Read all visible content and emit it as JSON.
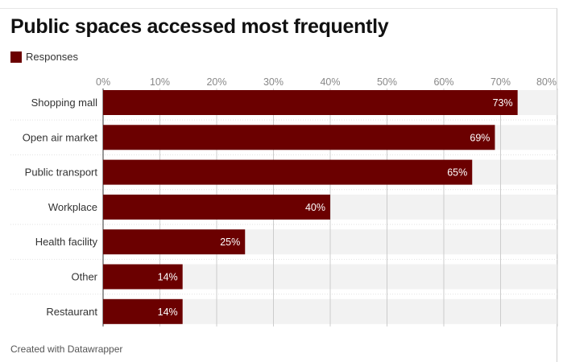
{
  "title": "Public spaces accessed most frequently",
  "legend": {
    "label": "Responses",
    "color": "#6b0000"
  },
  "footer": "Created with Datawrapper",
  "colors": {
    "bar": "#6b0000",
    "track": "#f2f2f2",
    "grid": "#cccccc"
  },
  "chart_data": {
    "type": "bar",
    "orientation": "horizontal",
    "title": "Public spaces accessed most frequently",
    "categories": [
      "Shopping mall",
      "Open air market",
      "Public transport",
      "Workplace",
      "Health facility",
      "Other",
      "Restaurant"
    ],
    "series": [
      {
        "name": "Responses",
        "values": [
          73,
          69,
          65,
          40,
          25,
          14,
          14
        ]
      }
    ],
    "value_labels": [
      "73%",
      "69%",
      "65%",
      "40%",
      "25%",
      "14%",
      "14%"
    ],
    "xlim": [
      0,
      80
    ],
    "x_ticks": [
      0,
      10,
      20,
      30,
      40,
      50,
      60,
      70,
      80
    ],
    "x_tick_labels": [
      "0%",
      "10%",
      "20%",
      "30%",
      "40%",
      "50%",
      "60%",
      "70%",
      "80%"
    ],
    "grid": true,
    "legend_position": "top-left"
  }
}
